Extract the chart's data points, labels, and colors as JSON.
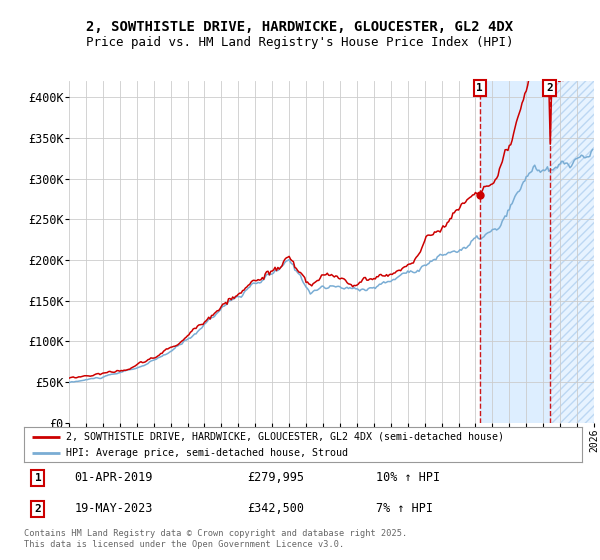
{
  "title_line1": "2, SOWTHISTLE DRIVE, HARDWICKE, GLOUCESTER, GL2 4DX",
  "title_line2": "Price paid vs. HM Land Registry's House Price Index (HPI)",
  "ylim": [
    0,
    420000
  ],
  "yticks": [
    0,
    50000,
    100000,
    150000,
    200000,
    250000,
    300000,
    350000,
    400000
  ],
  "ytick_labels": [
    "£0",
    "£50K",
    "£100K",
    "£150K",
    "£200K",
    "£250K",
    "£300K",
    "£350K",
    "£400K"
  ],
  "sale1_date": "01-APR-2019",
  "sale1_price": "£279,995",
  "sale1_hpi": "10% ↑ HPI",
  "sale1_year": 2019.25,
  "sale1_value": 279995,
  "sale2_date": "19-MAY-2023",
  "sale2_price": "£342,500",
  "sale2_hpi": "7% ↑ HPI",
  "sale2_year": 2023.38,
  "sale2_value": 342500,
  "line_prop_color": "#cc0000",
  "line_hpi_color": "#7aadd4",
  "legend1_label": "2, SOWTHISTLE DRIVE, HARDWICKE, GLOUCESTER, GL2 4DX (semi-detached house)",
  "legend2_label": "HPI: Average price, semi-detached house, Stroud",
  "footer": "Contains HM Land Registry data © Crown copyright and database right 2025.\nThis data is licensed under the Open Government Licence v3.0.",
  "bg_color": "#ffffff",
  "plot_bg_color": "#ffffff",
  "shade_color": "#ddeeff",
  "grid_color": "#cccccc",
  "xstart": 1995,
  "xend": 2026
}
